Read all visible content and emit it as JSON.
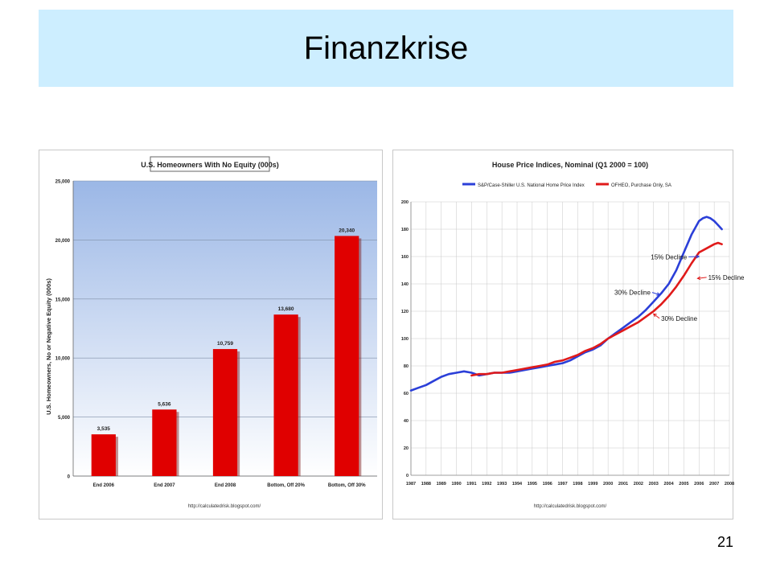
{
  "slide": {
    "title": "Finanzkrise",
    "page_number": "21"
  },
  "chart_data": [
    {
      "type": "bar",
      "title": "U.S. Homeowners With No Equity (000s)",
      "ylabel": "U.S. Homeowners, No or Negative Equity (000s)",
      "xlabel": "",
      "categories": [
        "End 2006",
        "End 2007",
        "End 2008",
        "Bottom, Off 20%",
        "Bottom, Off 30%"
      ],
      "values": [
        3535,
        5636,
        10759,
        13680,
        20340
      ],
      "value_labels": [
        "3,535",
        "5,636",
        "10,759",
        "13,680",
        "20,340"
      ],
      "ylim": [
        0,
        25000
      ],
      "yticks": [
        0,
        5000,
        10000,
        15000,
        20000,
        25000
      ],
      "ytick_labels": [
        "0",
        "5,000",
        "10,000",
        "15,000",
        "20,000",
        "25,000"
      ],
      "grid": true,
      "source": "http://calculatedrisk.blogspot.com/",
      "colors": {
        "bar": "#e00000",
        "plot_bg_top": "#9bb7e6",
        "plot_bg_bottom": "#ffffff"
      }
    },
    {
      "type": "line",
      "title": "House Price Indices, Nominal (Q1 2000 = 100)",
      "xlabel": "",
      "ylabel": "",
      "xlim": [
        1987,
        2008
      ],
      "ylim": [
        0,
        200
      ],
      "xticks": [
        1987,
        1988,
        1989,
        1990,
        1991,
        1992,
        1993,
        1994,
        1995,
        1996,
        1997,
        1998,
        1999,
        2000,
        2001,
        2002,
        2003,
        2004,
        2005,
        2006,
        2007,
        2008
      ],
      "yticks": [
        0,
        20,
        40,
        60,
        80,
        100,
        120,
        140,
        160,
        180,
        200
      ],
      "grid": true,
      "legend_position": "top",
      "source": "http://calculatedrisk.blogspot.com/",
      "series": [
        {
          "name": "S&P/Case-Shiller U.S. National Home Price Index",
          "color": "#2b3fd8",
          "x": [
            1987,
            1987.5,
            1988,
            1988.5,
            1989,
            1989.5,
            1990,
            1990.5,
            1991,
            1991.5,
            1992,
            1992.5,
            1993,
            1993.5,
            1994,
            1994.5,
            1995,
            1995.5,
            1996,
            1996.5,
            1997,
            1997.5,
            1998,
            1998.5,
            1999,
            1999.5,
            2000,
            2000.5,
            2001,
            2001.5,
            2002,
            2002.5,
            2003,
            2003.5,
            2004,
            2004.5,
            2005,
            2005.5,
            2006,
            2006.25,
            2006.5,
            2006.75,
            2007,
            2007.25,
            2007.5
          ],
          "y": [
            62,
            64,
            66,
            69,
            72,
            74,
            75,
            76,
            75,
            73,
            74,
            75,
            75,
            75,
            76,
            77,
            78,
            79,
            80,
            81,
            82,
            84,
            87,
            90,
            92,
            95,
            100,
            104,
            108,
            112,
            116,
            121,
            127,
            133,
            140,
            150,
            163,
            176,
            186,
            188,
            189,
            188,
            186,
            183,
            180
          ]
        },
        {
          "name": "OFHEO, Purchase Only, SA",
          "color": "#e01a1a",
          "x": [
            1991,
            1991.5,
            1992,
            1992.5,
            1993,
            1993.5,
            1994,
            1994.5,
            1995,
            1995.5,
            1996,
            1996.5,
            1997,
            1997.5,
            1998,
            1998.5,
            1999,
            1999.5,
            2000,
            2000.5,
            2001,
            2001.5,
            2002,
            2002.5,
            2003,
            2003.5,
            2004,
            2004.5,
            2005,
            2005.5,
            2006,
            2006.5,
            2007,
            2007.25,
            2007.5
          ],
          "y": [
            73,
            74,
            74,
            75,
            75,
            76,
            77,
            78,
            79,
            80,
            81,
            83,
            84,
            86,
            88,
            91,
            93,
            96,
            100,
            103,
            106,
            109,
            112,
            116,
            120,
            125,
            131,
            138,
            146,
            155,
            163,
            166,
            169,
            170,
            169
          ]
        }
      ],
      "annotations": [
        {
          "text": "15% Decline",
          "x": 2005.2,
          "y": 158,
          "target_x": 2006.0,
          "target_y": 160,
          "color": "#2b3fd8",
          "anchor": "end"
        },
        {
          "text": "15% Decline",
          "x": 2006.6,
          "y": 143,
          "target_x": 2005.9,
          "target_y": 144,
          "color": "#e01a1a",
          "anchor": "start"
        },
        {
          "text": "30% Decline",
          "x": 2002.8,
          "y": 132,
          "target_x": 2003.4,
          "target_y": 132,
          "color": "#2b3fd8",
          "anchor": "end"
        },
        {
          "text": "30% Decline",
          "x": 2003.5,
          "y": 113,
          "target_x": 2003.0,
          "target_y": 118,
          "color": "#e01a1a",
          "anchor": "start"
        }
      ]
    }
  ]
}
